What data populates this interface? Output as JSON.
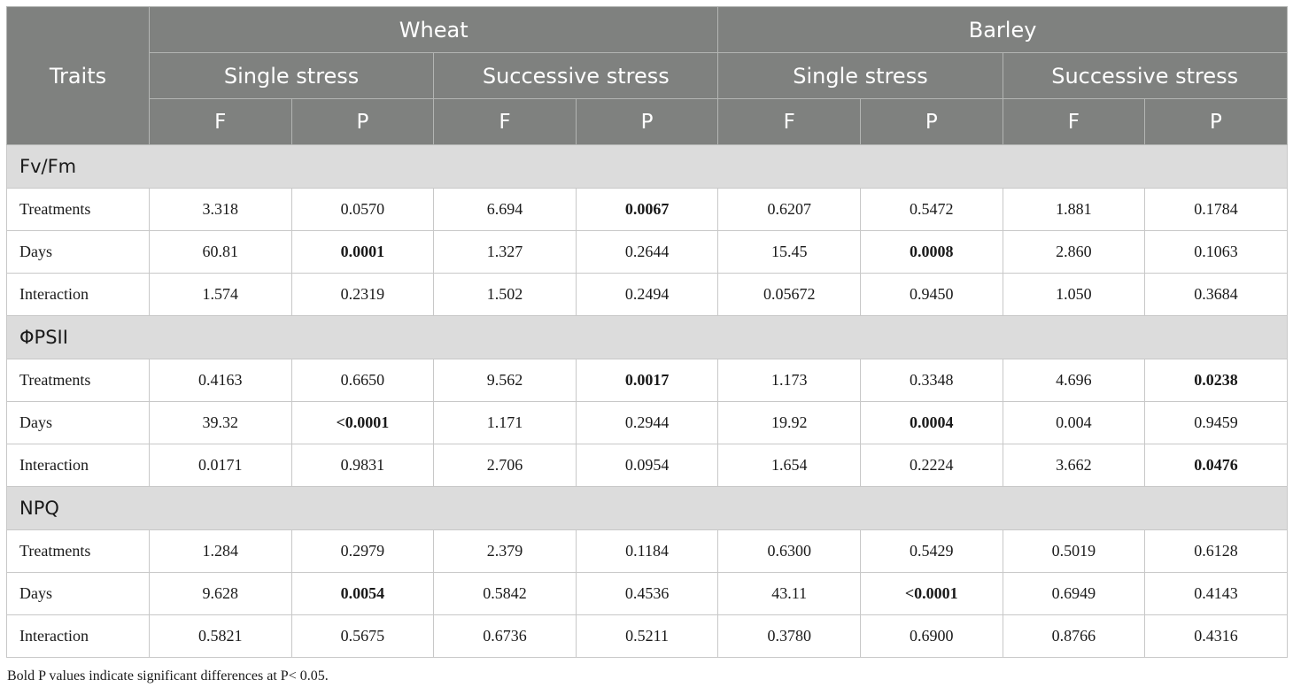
{
  "header": {
    "traits": "Traits",
    "species": [
      "Wheat",
      "Barley"
    ],
    "stress_types": [
      "Single stress",
      "Successive stress",
      "Single stress",
      "Successive stress"
    ],
    "stat_labels": [
      "F",
      "P",
      "F",
      "P",
      "F",
      "P",
      "F",
      "P"
    ]
  },
  "groups": [
    {
      "label": "Fv/Fm",
      "rows": [
        {
          "label": "Treatments",
          "cells": [
            {
              "v": "3.318",
              "bold": false
            },
            {
              "v": "0.0570",
              "bold": false
            },
            {
              "v": "6.694",
              "bold": false
            },
            {
              "v": "0.0067",
              "bold": true
            },
            {
              "v": "0.6207",
              "bold": false
            },
            {
              "v": "0.5472",
              "bold": false
            },
            {
              "v": "1.881",
              "bold": false
            },
            {
              "v": "0.1784",
              "bold": false
            }
          ]
        },
        {
          "label": "Days",
          "cells": [
            {
              "v": "60.81",
              "bold": false
            },
            {
              "v": "0.0001",
              "bold": true
            },
            {
              "v": "1.327",
              "bold": false
            },
            {
              "v": "0.2644",
              "bold": false
            },
            {
              "v": "15.45",
              "bold": false
            },
            {
              "v": "0.0008",
              "bold": true
            },
            {
              "v": "2.860",
              "bold": false
            },
            {
              "v": "0.1063",
              "bold": false
            }
          ]
        },
        {
          "label": "Interaction",
          "cells": [
            {
              "v": "1.574",
              "bold": false
            },
            {
              "v": "0.2319",
              "bold": false
            },
            {
              "v": "1.502",
              "bold": false
            },
            {
              "v": "0.2494",
              "bold": false
            },
            {
              "v": "0.05672",
              "bold": false
            },
            {
              "v": "0.9450",
              "bold": false
            },
            {
              "v": "1.050",
              "bold": false
            },
            {
              "v": "0.3684",
              "bold": false
            }
          ]
        }
      ]
    },
    {
      "label": "ΦPSII",
      "rows": [
        {
          "label": "Treatments",
          "cells": [
            {
              "v": "0.4163",
              "bold": false
            },
            {
              "v": "0.6650",
              "bold": false
            },
            {
              "v": "9.562",
              "bold": false
            },
            {
              "v": "0.0017",
              "bold": true
            },
            {
              "v": "1.173",
              "bold": false
            },
            {
              "v": "0.3348",
              "bold": false
            },
            {
              "v": "4.696",
              "bold": false
            },
            {
              "v": "0.0238",
              "bold": true
            }
          ]
        },
        {
          "label": "Days",
          "cells": [
            {
              "v": "39.32",
              "bold": false
            },
            {
              "v": "<0.0001",
              "bold": true
            },
            {
              "v": "1.171",
              "bold": false
            },
            {
              "v": "0.2944",
              "bold": false
            },
            {
              "v": "19.92",
              "bold": false
            },
            {
              "v": "0.0004",
              "bold": true
            },
            {
              "v": "0.004",
              "bold": false
            },
            {
              "v": "0.9459",
              "bold": false
            }
          ]
        },
        {
          "label": "Interaction",
          "cells": [
            {
              "v": "0.0171",
              "bold": false
            },
            {
              "v": "0.9831",
              "bold": false
            },
            {
              "v": "2.706",
              "bold": false
            },
            {
              "v": "0.0954",
              "bold": false
            },
            {
              "v": "1.654",
              "bold": false
            },
            {
              "v": "0.2224",
              "bold": false
            },
            {
              "v": "3.662",
              "bold": false
            },
            {
              "v": "0.0476",
              "bold": true
            }
          ]
        }
      ]
    },
    {
      "label": "NPQ",
      "rows": [
        {
          "label": "Treatments",
          "cells": [
            {
              "v": "1.284",
              "bold": false
            },
            {
              "v": "0.2979",
              "bold": false
            },
            {
              "v": "2.379",
              "bold": false
            },
            {
              "v": "0.1184",
              "bold": false
            },
            {
              "v": "0.6300",
              "bold": false
            },
            {
              "v": "0.5429",
              "bold": false
            },
            {
              "v": "0.5019",
              "bold": false
            },
            {
              "v": "0.6128",
              "bold": false
            }
          ]
        },
        {
          "label": "Days",
          "cells": [
            {
              "v": "9.628",
              "bold": false
            },
            {
              "v": "0.0054",
              "bold": true
            },
            {
              "v": "0.5842",
              "bold": false
            },
            {
              "v": "0.4536",
              "bold": false
            },
            {
              "v": "43.11",
              "bold": false
            },
            {
              "v": "<0.0001",
              "bold": true
            },
            {
              "v": "0.6949",
              "bold": false
            },
            {
              "v": "0.4143",
              "bold": false
            }
          ]
        },
        {
          "label": "Interaction",
          "cells": [
            {
              "v": "0.5821",
              "bold": false
            },
            {
              "v": "0.5675",
              "bold": false
            },
            {
              "v": "0.6736",
              "bold": false
            },
            {
              "v": "0.5211",
              "bold": false
            },
            {
              "v": "0.3780",
              "bold": false
            },
            {
              "v": "0.6900",
              "bold": false
            },
            {
              "v": "0.8766",
              "bold": false
            },
            {
              "v": "0.4316",
              "bold": false
            }
          ]
        }
      ]
    }
  ],
  "footnote": "Bold P values indicate significant differences at P< 0.05."
}
